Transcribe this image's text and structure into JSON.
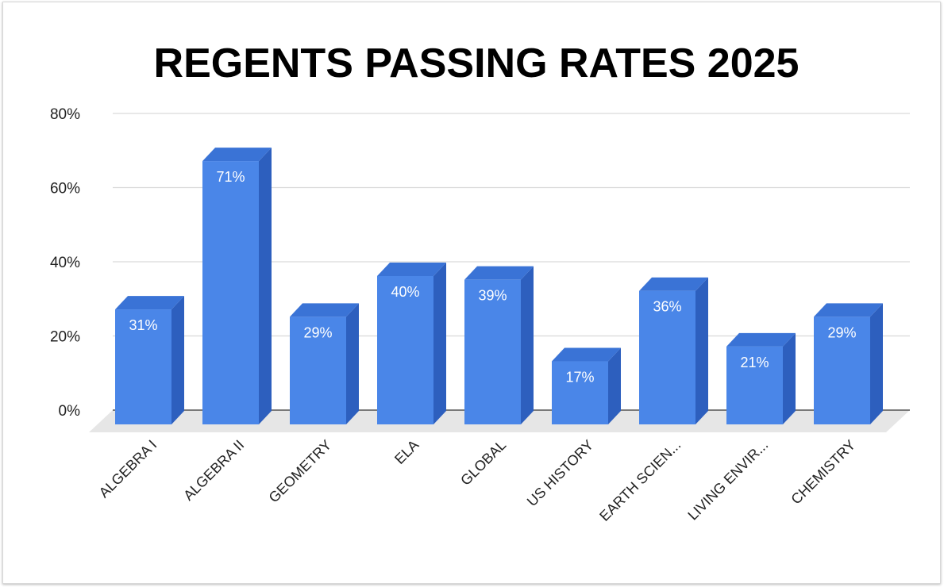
{
  "chart_data": {
    "type": "bar",
    "title": "REGENTS PASSING RATES 2025",
    "xlabel": "",
    "ylabel": "",
    "categories": [
      "ALGEBRA I",
      "ALGEBRA II",
      "GEOMETRY",
      "ELA",
      "GLOBAL",
      "US HISTORY",
      "EARTH SCIEN...",
      "LIVING ENVIR...",
      "CHEMISTRY"
    ],
    "values": [
      31,
      71,
      29,
      40,
      39,
      17,
      36,
      21,
      29
    ],
    "data_labels": [
      "31%",
      "71%",
      "29%",
      "40%",
      "39%",
      "17%",
      "36%",
      "21%",
      "29%"
    ],
    "ylim": [
      0,
      80
    ],
    "yticks": [
      0,
      20,
      40,
      60,
      80
    ],
    "ytick_labels": [
      "0%",
      "20%",
      "40%",
      "60%",
      "80%"
    ],
    "grid": true,
    "legend": "none",
    "style": "3d-column",
    "colors": {
      "bar_front": "#4a86e8",
      "bar_side": "#2d5fbe",
      "bar_top": "#3a73d6",
      "grid": "#d9d9d9",
      "floor": "#e6e6e6"
    }
  }
}
